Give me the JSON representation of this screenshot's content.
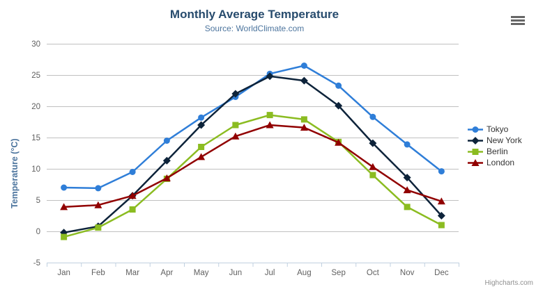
{
  "chart_data": {
    "type": "line",
    "title": "Monthly Average Temperature",
    "subtitle": "Source: WorldClimate.com",
    "xlabel": "",
    "ylabel": "Temperature (°C)",
    "ylim": [
      -5,
      30
    ],
    "yticks": [
      30,
      25,
      20,
      15,
      10,
      5,
      0,
      -5
    ],
    "grid": true,
    "legend_position": "right",
    "grid_color": "#C0C0C0",
    "axis_line_color": "#C0D0E0",
    "axis_label_color": "#606060",
    "categories": [
      "Jan",
      "Feb",
      "Mar",
      "Apr",
      "May",
      "Jun",
      "Jul",
      "Aug",
      "Sep",
      "Oct",
      "Nov",
      "Dec"
    ],
    "series": [
      {
        "name": "Tokyo",
        "color": "#2f7ed8",
        "marker": "circle",
        "values": [
          7.0,
          6.9,
          9.5,
          14.5,
          18.2,
          21.5,
          25.2,
          26.5,
          23.3,
          18.3,
          13.9,
          9.6
        ]
      },
      {
        "name": "New York",
        "color": "#0d233a",
        "marker": "diamond",
        "values": [
          -0.2,
          0.8,
          5.7,
          11.3,
          17.0,
          22.0,
          24.8,
          24.1,
          20.1,
          14.1,
          8.6,
          2.5
        ]
      },
      {
        "name": "Berlin",
        "color": "#8bbc21",
        "marker": "square",
        "values": [
          -0.9,
          0.6,
          3.5,
          8.4,
          13.5,
          17.0,
          18.6,
          17.9,
          14.3,
          9.0,
          3.9,
          1.0
        ]
      },
      {
        "name": "London",
        "color": "#910000",
        "marker": "triangle",
        "values": [
          3.9,
          4.2,
          5.7,
          8.5,
          11.9,
          15.2,
          17.0,
          16.6,
          14.2,
          10.3,
          6.6,
          4.8
        ]
      }
    ]
  },
  "header": {
    "menu_icon": "hamburger-icon"
  },
  "credits": {
    "label": "Highcharts.com"
  }
}
